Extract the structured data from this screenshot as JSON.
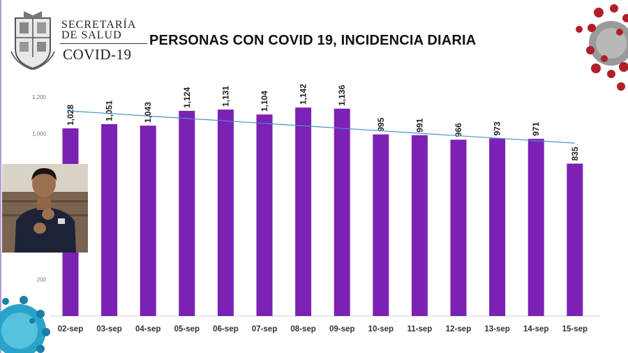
{
  "header": {
    "org_line1": "SECRETARÍA",
    "org_line2": "DE SALUD",
    "org_sub": "COVID-19",
    "title": "PERSONAS CON COVID 19, INCIDENCIA DIARIA"
  },
  "colors": {
    "bar": "#7b22b5",
    "trendline": "#4a8fc9",
    "background": "#ffffff"
  },
  "icons": {
    "seal": "state-seal-icon",
    "virus_top_right": "red-coronavirus-icon",
    "virus_bottom_left": "blue-coronavirus-icon"
  },
  "chart_data": {
    "type": "bar",
    "title": "PERSONAS CON COVID 19, INCIDENCIA DIARIA",
    "categories": [
      "02-sep",
      "03-sep",
      "04-sep",
      "05-sep",
      "06-sep",
      "07-sep",
      "08-sep",
      "09-sep",
      "10-sep",
      "11-sep",
      "12-sep",
      "13-sep",
      "14-sep",
      "15-sep"
    ],
    "values": [
      1028,
      1051,
      1043,
      1124,
      1131,
      1104,
      1142,
      1136,
      995,
      991,
      966,
      973,
      971,
      835
    ],
    "value_labels": [
      "1,028",
      "1,051",
      "1,043",
      "1,124",
      "1,131",
      "1,104",
      "1,142",
      "1,136",
      "995",
      "991",
      "966",
      "973",
      "971",
      "835"
    ],
    "yticks": [
      {
        "value": 1200,
        "label": "1,200"
      },
      {
        "value": 1000,
        "label": "1,000"
      },
      {
        "value": 200,
        "label": "200"
      }
    ],
    "ylim": [
      0,
      1200
    ],
    "grid": false,
    "trendline": "linear",
    "xlabel": "",
    "ylabel": ""
  }
}
